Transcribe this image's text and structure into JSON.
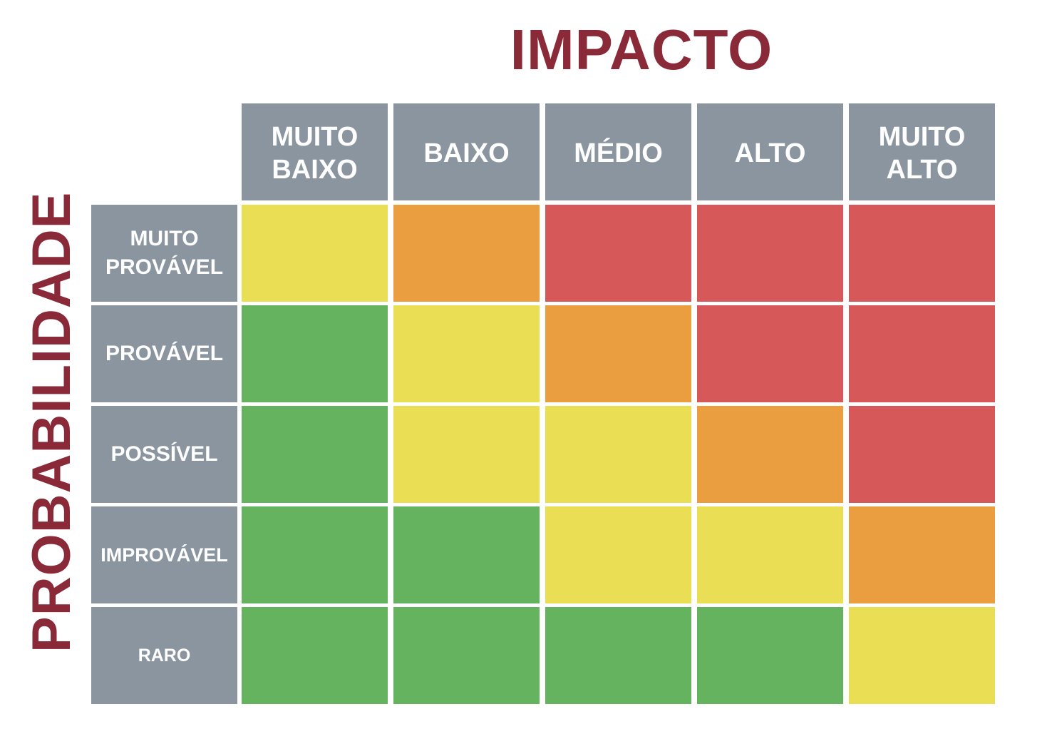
{
  "title_impact": "IMPACTO",
  "title_probability": "PROBABILIDADE",
  "impact_levels": [
    "MUITO\nBAIXO",
    "BAIXO",
    "MÉDIO",
    "ALTO",
    "MUITO\nALTO"
  ],
  "probability_levels": [
    "MUITO\nPROVÁVEL",
    "PROVÁVEL",
    "POSSÍVEL",
    "IMPROVÁVEL",
    "RARO"
  ],
  "colors": {
    "header": "#8a95a0",
    "title": "#8a2a38",
    "green": "#65b25f",
    "yellow": "#eadf54",
    "orange": "#eb9e40",
    "red": "#d65858"
  },
  "matrix": [
    [
      "yellow",
      "orange",
      "red",
      "red",
      "red"
    ],
    [
      "green",
      "yellow",
      "orange",
      "red",
      "red"
    ],
    [
      "green",
      "yellow",
      "yellow",
      "orange",
      "red"
    ],
    [
      "green",
      "green",
      "yellow",
      "yellow",
      "orange"
    ],
    [
      "green",
      "green",
      "green",
      "green",
      "yellow"
    ]
  ]
}
